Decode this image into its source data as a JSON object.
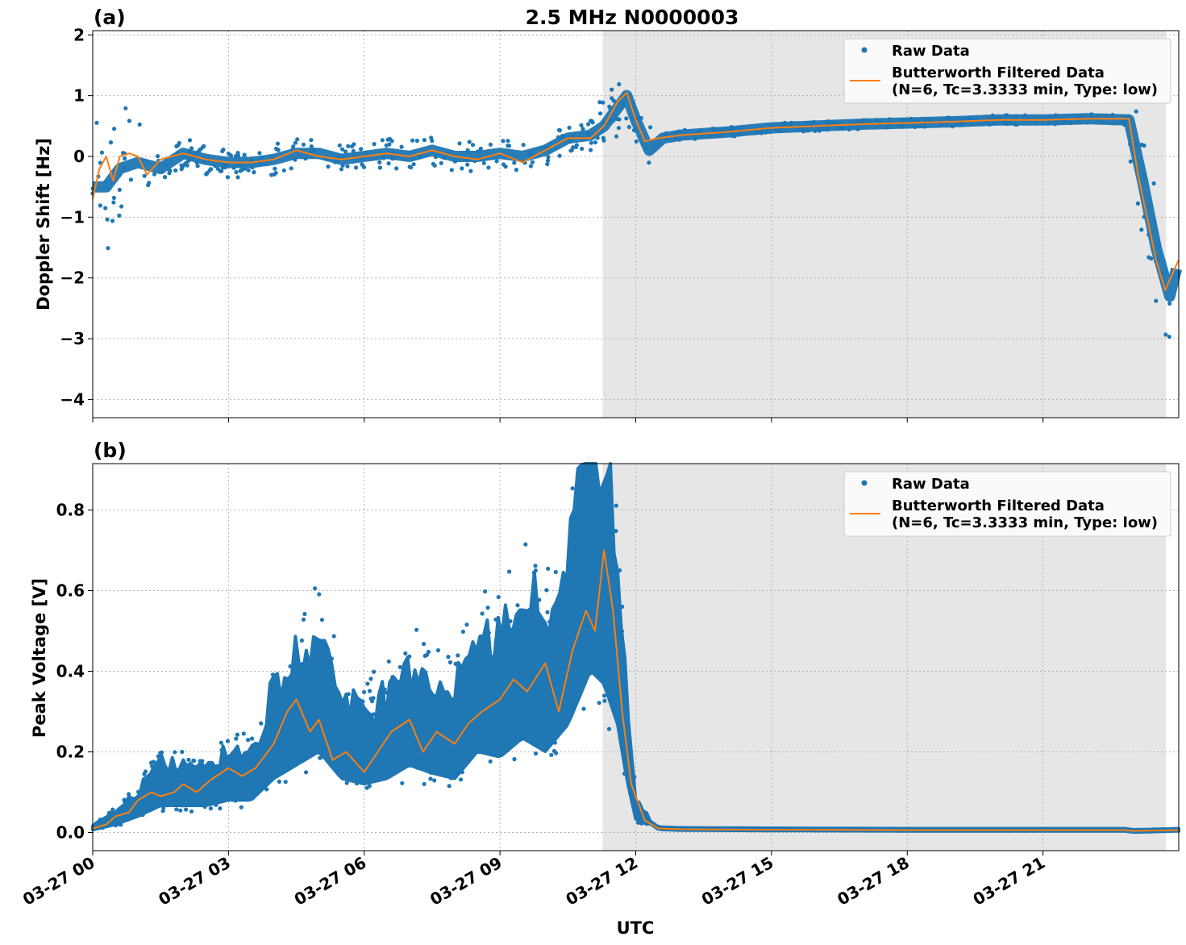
{
  "title": "2.5 MHz N0000003",
  "xlabel": "UTC",
  "x_ticks": [
    "03-27 00",
    "03-27 03",
    "03-27 06",
    "03-27 09",
    "03-27 12",
    "03-27 15",
    "03-27 18",
    "03-27 21"
  ],
  "colors": {
    "raw": "#1f77b4",
    "filtered": "#ff7f0e",
    "shade": "#e6e6e6"
  },
  "chart_data": [
    {
      "type": "scatter",
      "panel_label": "(a)",
      "ylabel": "Doppler Shift [Hz]",
      "xlim": [
        0,
        24
      ],
      "ylim": [
        -4.3,
        2.07
      ],
      "y_ticks": [
        2,
        1,
        0,
        -1,
        -2,
        -3,
        -4
      ],
      "y_tick_labels": [
        "2",
        "1",
        "0",
        "−1",
        "−2",
        "−3",
        "−4"
      ],
      "shaded_x_range": [
        11.27,
        23.72
      ],
      "grid": true,
      "legend_position": "top-right",
      "legend": [
        "Raw Data",
        "Butterworth Filtered Data",
        "(N=6, Tc=3.3333 min, Type: low)"
      ],
      "series": [
        {
          "name": "Raw Data",
          "x": [
            0,
            0.3,
            0.6,
            1,
            1.5,
            2,
            2.5,
            3,
            3.5,
            4,
            4.5,
            5,
            5.5,
            6,
            6.5,
            7,
            7.5,
            8,
            8.5,
            9,
            9.5,
            10,
            10.5,
            11,
            11.3,
            11.6,
            11.8,
            12,
            12.3,
            12.6,
            13,
            14,
            15,
            16,
            17,
            18,
            19,
            20,
            21,
            22,
            22.9,
            23.2,
            23.5,
            23.8,
            24
          ],
          "y": [
            -0.5,
            -0.5,
            -0.2,
            -0.1,
            -0.2,
            0.05,
            -0.05,
            -0.1,
            -0.1,
            -0.05,
            0.05,
            0.05,
            -0.05,
            0.0,
            0.05,
            0.0,
            0.1,
            0.0,
            0.0,
            0.05,
            0.0,
            0.1,
            0.3,
            0.35,
            0.5,
            0.8,
            1.0,
            0.6,
            0.1,
            0.3,
            0.35,
            0.4,
            0.47,
            0.5,
            0.53,
            0.55,
            0.57,
            0.6,
            0.6,
            0.62,
            0.6,
            -0.4,
            -1.5,
            -2.3,
            -1.7
          ]
        },
        {
          "name": "Butterworth Filtered Data",
          "x": [
            0,
            0.15,
            0.3,
            0.45,
            0.6,
            0.8,
            1,
            1.2,
            1.5,
            2,
            2.5,
            3,
            3.5,
            4,
            4.5,
            5,
            5.5,
            6,
            6.5,
            7,
            7.5,
            8,
            8.5,
            9,
            9.5,
            10,
            10.5,
            11,
            11.3,
            11.6,
            11.8,
            12,
            12.2,
            12.5,
            13,
            14,
            15,
            16,
            17,
            18,
            19,
            20,
            21,
            22,
            22.9,
            23.1,
            23.3,
            23.5,
            23.7,
            24
          ],
          "y": [
            -0.7,
            -0.2,
            0.0,
            -0.4,
            0.0,
            0.05,
            0.0,
            -0.3,
            -0.05,
            0.05,
            -0.05,
            -0.1,
            -0.1,
            -0.05,
            0.1,
            0.0,
            -0.05,
            0.0,
            0.05,
            0.0,
            0.1,
            0.0,
            -0.05,
            0.05,
            -0.1,
            0.1,
            0.3,
            0.3,
            0.5,
            0.9,
            1.05,
            0.6,
            0.25,
            0.3,
            0.35,
            0.4,
            0.47,
            0.5,
            0.53,
            0.55,
            0.57,
            0.6,
            0.6,
            0.62,
            0.62,
            -0.3,
            -1.0,
            -1.7,
            -2.2,
            -1.7
          ]
        }
      ]
    },
    {
      "type": "scatter",
      "panel_label": "(b)",
      "ylabel": "Peak Voltage [V]",
      "xlim": [
        0,
        24
      ],
      "ylim": [
        -0.045,
        0.915
      ],
      "y_ticks": [
        0.8,
        0.6,
        0.4,
        0.2,
        0.0
      ],
      "y_tick_labels": [
        "0.8",
        "0.6",
        "0.4",
        "0.2",
        "0.0"
      ],
      "shaded_x_range": [
        11.27,
        23.72
      ],
      "grid": true,
      "legend_position": "top-right",
      "legend": [
        "Raw Data",
        "Butterworth Filtered Data",
        "(N=6, Tc=3.3333 min, Type: low)"
      ],
      "series": [
        {
          "name": "Raw Data",
          "x": [
            0,
            0.5,
            1,
            1.5,
            2,
            2.5,
            3,
            3.5,
            4,
            4.5,
            5,
            5.5,
            6,
            6.5,
            7,
            7.5,
            8,
            8.5,
            9,
            9.5,
            10,
            10.5,
            11,
            11.3,
            11.6,
            11.8,
            12,
            12.5,
            13,
            15,
            18,
            21,
            22.8,
            23,
            24
          ],
          "y": [
            0.01,
            0.03,
            0.06,
            0.1,
            0.1,
            0.1,
            0.12,
            0.12,
            0.2,
            0.25,
            0.3,
            0.2,
            0.18,
            0.2,
            0.25,
            0.22,
            0.2,
            0.3,
            0.28,
            0.35,
            0.3,
            0.4,
            0.6,
            0.55,
            0.4,
            0.2,
            0.05,
            0.01,
            0.008,
            0.007,
            0.006,
            0.006,
            0.006,
            0.003,
            0.006
          ]
        },
        {
          "name": "Butterworth Filtered Data",
          "x": [
            0,
            0.3,
            0.5,
            0.8,
            1,
            1.3,
            1.5,
            1.8,
            2,
            2.3,
            2.6,
            3,
            3.3,
            3.6,
            4,
            4.3,
            4.5,
            4.8,
            5,
            5.3,
            5.6,
            6,
            6.3,
            6.6,
            7,
            7.3,
            7.6,
            8,
            8.3,
            8.6,
            9,
            9.3,
            9.6,
            10,
            10.3,
            10.6,
            10.9,
            11.1,
            11.3,
            11.5,
            11.7,
            11.9,
            12.2,
            12.5,
            13,
            15,
            18,
            21,
            22.8,
            23,
            24
          ],
          "y": [
            0.01,
            0.02,
            0.04,
            0.05,
            0.08,
            0.1,
            0.09,
            0.1,
            0.12,
            0.1,
            0.13,
            0.16,
            0.14,
            0.16,
            0.22,
            0.3,
            0.33,
            0.25,
            0.28,
            0.18,
            0.2,
            0.15,
            0.2,
            0.25,
            0.28,
            0.2,
            0.25,
            0.22,
            0.27,
            0.3,
            0.33,
            0.38,
            0.35,
            0.42,
            0.3,
            0.45,
            0.55,
            0.5,
            0.7,
            0.55,
            0.3,
            0.12,
            0.03,
            0.01,
            0.008,
            0.007,
            0.006,
            0.006,
            0.006,
            0.004,
            0.006
          ]
        }
      ]
    }
  ]
}
